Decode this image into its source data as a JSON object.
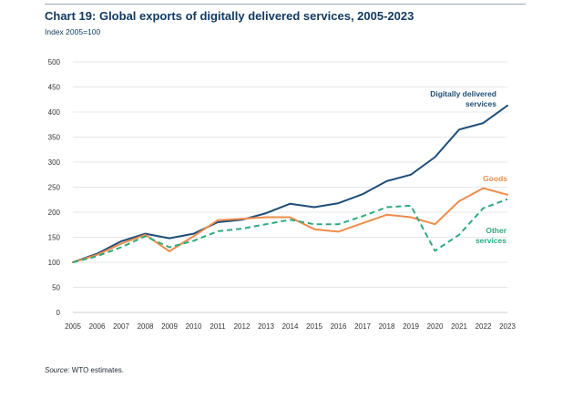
{
  "chart_data": {
    "type": "line",
    "title": "Chart 19: Global exports of digitally delivered services, 2005-2023",
    "subtitle": "Index 2005=100",
    "x": [
      "2005",
      "2006",
      "2007",
      "2008",
      "2009",
      "2010",
      "2011",
      "2012",
      "2013",
      "2014",
      "2015",
      "2016",
      "2017",
      "2018",
      "2019",
      "2020",
      "2021",
      "2022",
      "2023"
    ],
    "ylim": [
      0,
      500
    ],
    "yticks": [
      0,
      50,
      100,
      150,
      200,
      250,
      300,
      350,
      400,
      450,
      500
    ],
    "grid": true,
    "legend": "inline labels",
    "series": [
      {
        "name": "Digitally delivered services",
        "label_lines": [
          "Digitally delivered",
          "services"
        ],
        "color": "#1f4e79",
        "style": "solid",
        "values": [
          100,
          117,
          142,
          157,
          148,
          157,
          180,
          185,
          198,
          217,
          210,
          218,
          236,
          262,
          275,
          310,
          365,
          378,
          413
        ]
      },
      {
        "name": "Goods",
        "label_lines": [
          "Goods"
        ],
        "color": "#ee8c4a",
        "style": "solid",
        "values": [
          100,
          115,
          137,
          155,
          122,
          152,
          184,
          187,
          190,
          190,
          166,
          161,
          178,
          195,
          190,
          176,
          222,
          248,
          235
        ]
      },
      {
        "name": "Other services",
        "label_lines": [
          "Other",
          "services"
        ],
        "color": "#2eaa7d",
        "style": "dashed",
        "values": [
          100,
          112,
          130,
          152,
          130,
          143,
          162,
          167,
          176,
          185,
          176,
          176,
          192,
          210,
          213,
          123,
          155,
          208,
          226
        ]
      }
    ]
  },
  "source": {
    "label": "Source:",
    "text": " WTO estimates."
  }
}
